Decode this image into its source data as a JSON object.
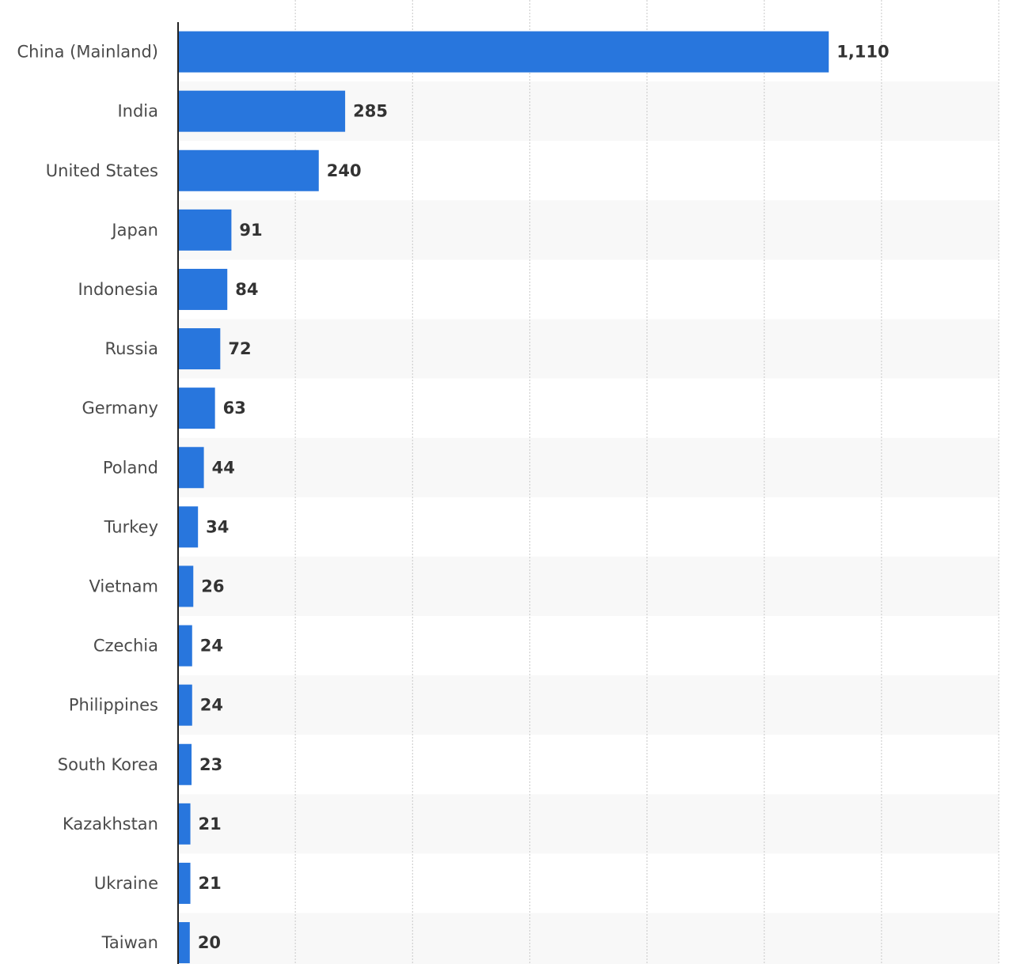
{
  "chart_data": {
    "type": "bar",
    "orientation": "horizontal",
    "categories": [
      "China (Mainland)",
      "India",
      "United States",
      "Japan",
      "Indonesia",
      "Russia",
      "Germany",
      "Poland",
      "Turkey",
      "Vietnam",
      "Czechia",
      "Philippines",
      "South Korea",
      "Kazakhstan",
      "Ukraine",
      "Taiwan"
    ],
    "values": [
      1110,
      285,
      240,
      91,
      84,
      72,
      63,
      44,
      34,
      26,
      24,
      24,
      23,
      21,
      21,
      20
    ],
    "value_labels": [
      "1,110",
      "285",
      "240",
      "91",
      "84",
      "72",
      "63",
      "44",
      "34",
      "26",
      "24",
      "24",
      "23",
      "21",
      "21",
      "20"
    ],
    "xlim": [
      0,
      1400
    ],
    "grid": true,
    "bar_color": "#2876dd",
    "stripe_color": "#f8f8f8",
    "grid_color": "#c9c9c9",
    "axis_color": "#222222"
  }
}
